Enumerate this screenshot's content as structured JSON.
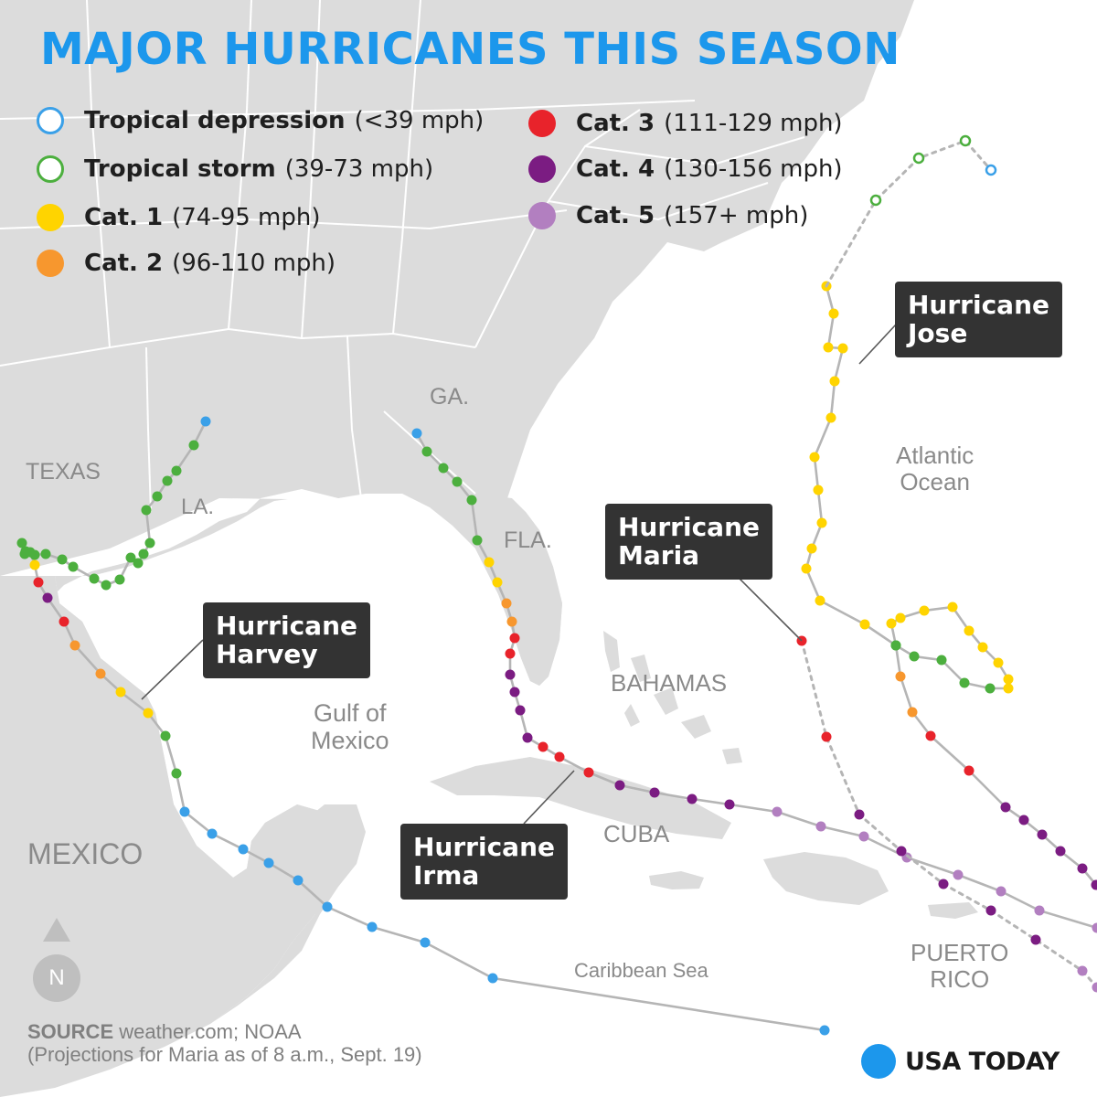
{
  "title": "MAJOR HURRICANES THIS SEASON",
  "legend": [
    {
      "name": "Tropical depression",
      "range": "(<39 mph)",
      "color": "#3aa0e8",
      "style": "hollow"
    },
    {
      "name": "Tropical storm",
      "range": "(39-73 mph)",
      "color": "#4caf3e",
      "style": "hollow"
    },
    {
      "name": "Cat. 1",
      "range": "(74-95 mph)",
      "color": "#ffd400",
      "style": "filled"
    },
    {
      "name": "Cat. 2",
      "range": "(96-110 mph)",
      "color": "#f7972e",
      "style": "filled"
    },
    {
      "name": "Cat. 3",
      "range": "(111-129 mph)",
      "color": "#e8232b",
      "style": "filled"
    },
    {
      "name": "Cat. 4",
      "range": "(130-156 mph)",
      "color": "#7b1c82",
      "style": "filled"
    },
    {
      "name": "Cat. 5",
      "range": "(157+ mph)",
      "color": "#b27fc0",
      "style": "filled"
    }
  ],
  "place_labels": {
    "texas": "TEXAS",
    "la": "LA.",
    "ga": "GA.",
    "fla": "FLA.",
    "bahamas": "BAHAMAS",
    "atlantic": [
      "Atlantic",
      "Ocean"
    ],
    "gulf": [
      "Gulf of",
      "Mexico"
    ],
    "mexico": "MEXICO",
    "cuba": "CUBA",
    "caribbean": "Caribbean Sea",
    "puerto_rico": [
      "PUERTO",
      "RICO"
    ]
  },
  "callouts": {
    "harvey": [
      "Hurricane",
      "Harvey"
    ],
    "irma": [
      "Hurricane",
      "Irma"
    ],
    "maria": [
      "Hurricane",
      "Maria"
    ],
    "jose": [
      "Hurricane",
      "Jose"
    ]
  },
  "compass": "N",
  "source": {
    "label": "SOURCE",
    "text": "weather.com; NOAA",
    "note": "(Projections for Maria as of 8 a.m., Sept. 19)"
  },
  "brand": "USA TODAY",
  "colors": {
    "land": "#dcdcdc",
    "water": "#ffffff",
    "borders": "#ffffff",
    "track": "#b5b5b5",
    "title": "#1c97ec",
    "callout_bg": "#333333"
  }
}
